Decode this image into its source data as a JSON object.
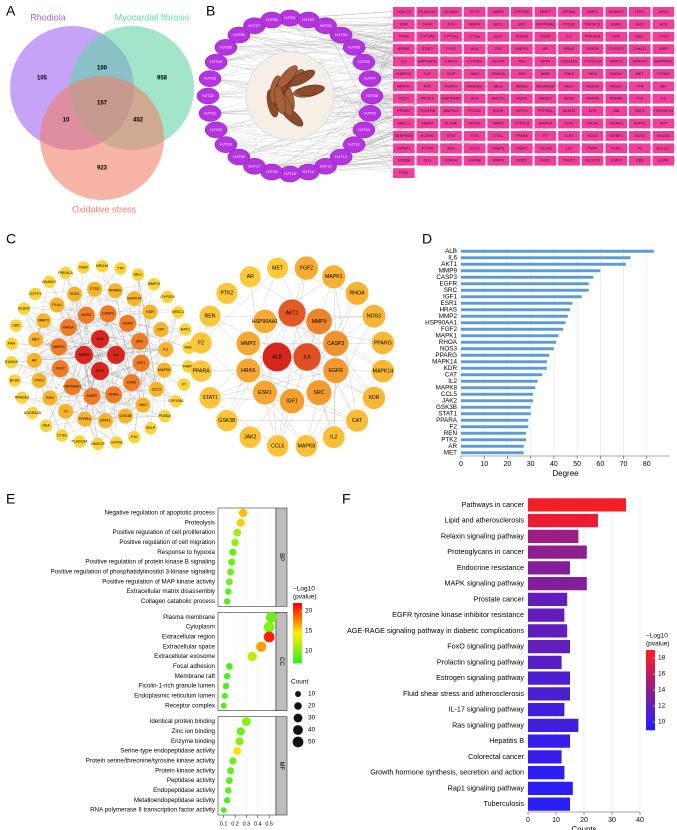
{
  "panel_labels": [
    "A",
    "B",
    "C",
    "D",
    "E",
    "F"
  ],
  "venn": {
    "sets": [
      {
        "name": "Rhodiola",
        "color": "#a066f0"
      },
      {
        "name": "Myocardial fibrosis",
        "color": "#62d6a8"
      },
      {
        "name": "Oxidative stress",
        "color": "#f0806a"
      }
    ],
    "regions": [
      105,
      100,
      958,
      157,
      10,
      452,
      923
    ]
  },
  "herb_network": {
    "compounds": [
      "HJT01",
      "HJT02",
      "HJT03",
      "HJT04",
      "HJT05",
      "HJT06",
      "HJT07",
      "HJT08",
      "HJT09",
      "HJT10",
      "HJT11",
      "HJT12",
      "HJT13",
      "HJT14",
      "HJT15",
      "HJT16",
      "HJT17",
      "HJT18",
      "HJT19",
      "HJT20",
      "HJT21",
      "HJT22",
      "HJT23",
      "HJT24",
      "HJT25",
      "HJT26",
      "HJT27",
      "HJT28"
    ],
    "targets": [
      "LGALS3",
      "PLA2G2A",
      "S100A9",
      "CFTR",
      "MMP3",
      "CYP19A1",
      "MMP7",
      "GP1BA",
      "MMP1",
      "ADAM17",
      "FGF1",
      "ARG1",
      "KDR",
      "CHUK",
      "JUN",
      "MMP9",
      "AKT1",
      "SRC",
      "SERPINA1",
      "PTGS2",
      "TNFSF11",
      "EGR1",
      "JAK1",
      "ACE",
      "P4HB",
      "CYP2A6",
      "CYP1A1",
      "CTSG",
      "IGF1",
      "PDE5A",
      "TGM2",
      "IL2",
      "PRKACA",
      "VDR",
      "SELL",
      "CTSD",
      "NFKB1",
      "STAT1",
      "PTK2",
      "ALB",
      "TEK",
      "MAPK1",
      "AR",
      "HRAS",
      "GSK3B",
      "CYP2C9",
      "CHKG1",
      "INSR",
      "IL6",
      "HSP90AA1",
      "CASP3",
      "CYP3A4",
      "ALOX5",
      "PAH",
      "DPP4",
      "HSD11B1",
      "CYP2C19",
      "MMP13",
      "SRD5A2",
      "SERPINE1",
      "MAPK10",
      "CAT",
      "XIAP",
      "JAK2",
      "PRKCA",
      "XDH",
      "MME",
      "TNKS",
      "REN",
      "RASA1",
      "MET",
      "CCND1",
      "MMP12",
      "F2R",
      "FGFR1",
      "RNASE3",
      "SELE",
      "ABCB1",
      "ADORA2A",
      "SELP",
      "NR1H4",
      "NR3C1",
      "TTR",
      "MIF",
      "NQO2",
      "PIK3CA",
      "HSP90AB1",
      "SHH",
      "HMOX1",
      "NQO1",
      "NR3C2",
      "NOS2",
      "HNF4A",
      "KDM4E",
      "F10",
      "F3",
      "PPARG",
      "PDGFRB",
      "MAPK14",
      "PTGS1",
      "BCHE",
      "GSTP1",
      "PTPN11",
      "ALDH2",
      "EPO",
      "MB",
      "RAF1",
      "TNFRSF1A",
      "ABCC1",
      "FABP4",
      "ELANE",
      "EPHX1",
      "MMP2",
      "CYP2C8",
      "MAPK8",
      "TLR2",
      "CALM1",
      "SMAD3",
      "HSPE1",
      "APP",
      "SERPINF2",
      "KCNH2",
      "TERT",
      "FOS",
      "CTSL",
      "PPARA",
      "F7",
      "TLR4",
      "NOX4",
      "IGFBP3",
      "NOS3",
      "HMGB1",
      "IGFBP1",
      "PTGIR",
      "ADA",
      "CCL5",
      "FABP3",
      "FABP1",
      "CXCR2",
      "LYZ",
      "PNMT",
      "PLAU",
      "F2",
      "BCL2L1",
      "SCN5A",
      "PLG",
      "FGFR4",
      "HSPA8",
      "MMP8",
      "SOD2",
      "FGF2",
      "TNNT2",
      "ALOX15",
      "STAT3",
      "CBS",
      "EGFR",
      "ESR1"
    ]
  },
  "ppi_network": {
    "rings": [
      [
        "ALB",
        "IL6",
        "AKT1",
        "MMP9"
      ],
      [
        "CASP3",
        "EGFR",
        "SRC",
        "IGF1",
        "ESR1",
        "HRAS",
        "MMP2",
        "HSP90AA1",
        "FGF2",
        "MAPK1",
        "RHOA",
        "NOS3"
      ],
      [
        "PPARG",
        "MAPK14",
        "KDR",
        "CAT",
        "IL2",
        "MAPK8",
        "CCL5",
        "JAK2",
        "GSK3B",
        "STAT1",
        "PPARA",
        "F2",
        "REN",
        "PTK2",
        "AR",
        "MET",
        "MMP3",
        "PLAU",
        "SOD2",
        "CTSD"
      ],
      [
        "TTR",
        "SELL",
        "MMP12",
        "CYP2C9",
        "NR3C1",
        "RAF1",
        "MME",
        "FABP4",
        "F7",
        "CYP19A1",
        "PDE5A",
        "SELP",
        "F10",
        "GSTM1",
        "HMGCR",
        "PLA2G2A",
        "CTSG",
        "ADA",
        "ADORA2A",
        "RNASE3",
        "BCHE",
        "S100A9",
        "PAH",
        "CBS",
        "ALDH2",
        "GSTP1",
        "ADAM17",
        "PRKACA",
        "INSR",
        "NR1H4"
      ]
    ]
  },
  "chart_data": [
    {
      "type": "barh",
      "xlabel": "Degree",
      "categories": [
        "ALB",
        "IL6",
        "AKT1",
        "MMP9",
        "CASP3",
        "EGFR",
        "SRC",
        "IGF1",
        "ESR1",
        "HRAS",
        "MMP2",
        "HSP90AA1",
        "FGF2",
        "MAPK1",
        "RHOA",
        "NOS3",
        "PPARG",
        "MAPK14",
        "KDR",
        "CAT",
        "IL2",
        "MAPK8",
        "CCL5",
        "JAK2",
        "GSK3B",
        "STAT1",
        "PPARA",
        "F2",
        "REN",
        "PTK2",
        "AR",
        "MET"
      ],
      "values": [
        83,
        73,
        71,
        60,
        57,
        55,
        55,
        52,
        48,
        47,
        46,
        45,
        44,
        42,
        41,
        40,
        38,
        37,
        37,
        35,
        33,
        32,
        31,
        31,
        30,
        30,
        29,
        29,
        28,
        28,
        27,
        27
      ],
      "color": "#5b9bd5",
      "xlim": [
        0,
        90
      ],
      "xticks": [
        0,
        10,
        20,
        30,
        40,
        50,
        60,
        70,
        80
      ],
      "grid": true
    },
    {
      "type": "dot",
      "groups": [
        {
          "name": "BP",
          "terms": [
            "Negative regulation of apoptotic process",
            "Proteolysis",
            "Positive regulation of cell proliferation",
            "Positive regulation of cell migration",
            "Response to hypoxia",
            "Positive regulation of protein kinase B signaling",
            "Positive regulation of phosphatidylinositol 3-kinase signaling",
            "Positive regulation of MAP kinase activity",
            "Extracellular matrix disassembly",
            "Collagen catabolic process"
          ],
          "x": [
            0.27,
            0.25,
            0.22,
            0.2,
            0.18,
            0.17,
            0.16,
            0.15,
            0.14,
            0.13
          ],
          "count": [
            27,
            25,
            22,
            20,
            18,
            17,
            16,
            15,
            14,
            13
          ],
          "color_values": [
            16,
            15.5,
            11,
            10.5,
            9,
            9,
            9,
            9,
            8.5,
            8.5
          ]
        },
        {
          "name": "CC",
          "terms": [
            "Plasma membrane",
            "Cytoplasm",
            "Extracellular region",
            "Extracellular space",
            "Extracellular exosome",
            "Focal adhesion",
            "Membrane raft",
            "Ficolin-1-rich granule lumen",
            "Endoplasmic reticulum lumen",
            "Receptor complex"
          ],
          "x": [
            0.52,
            0.5,
            0.5,
            0.43,
            0.35,
            0.15,
            0.13,
            0.12,
            0.11,
            0.1
          ],
          "count": [
            52,
            50,
            50,
            43,
            35,
            15,
            13,
            12,
            11,
            10
          ],
          "color_values": [
            9,
            10,
            21,
            17,
            12,
            8,
            8,
            8,
            8,
            8
          ]
        },
        {
          "name": "MF",
          "terms": [
            "Identical protein binding",
            "Zinc ion binding",
            "Enzyme binding",
            "Serine-type endopeptidase activity",
            "Protein serine/threonine/tyrosine kinase activity",
            "Protein kinase activity",
            "Peptidase activity",
            "Endopeptidase activity",
            "Metalloendopeptidase activity",
            "RNA polymerase II transcription factor activity"
          ],
          "x": [
            0.3,
            0.25,
            0.24,
            0.22,
            0.18,
            0.16,
            0.15,
            0.14,
            0.13,
            0.1
          ],
          "count": [
            30,
            25,
            24,
            22,
            18,
            16,
            15,
            14,
            13,
            10
          ],
          "color_values": [
            10,
            9,
            10,
            15,
            9,
            8.5,
            8.5,
            8.5,
            8,
            8
          ]
        }
      ],
      "xlim": [
        0.05,
        0.56
      ],
      "xticks": [
        0.1,
        0.2,
        0.3,
        0.4,
        0.5
      ],
      "colors": [
        "#33ee22",
        "#ffee00",
        "#ff0000"
      ],
      "clim": [
        7,
        22
      ],
      "color_ticks": [
        10,
        15,
        20
      ],
      "color_title": [
        "−Log10",
        "(pvalue)"
      ],
      "size_title": "Count",
      "size_ticks": [
        10,
        20,
        30,
        40,
        50
      ]
    },
    {
      "type": "barh",
      "xlabel": "Counts",
      "categories": [
        "Pathways in cancer",
        "Lipid and atherosclerosis",
        "Relaxin signaling pathway",
        "Proteoglycans in cancer",
        "Endocrine resistance",
        "MAPK signaling pathway",
        "Prostate cancer",
        "EGFR tyrosine kinase inhibitor resistance",
        "AGE-RAGE signaling pathway in diabetic complications",
        "FoxO signaling pathway",
        "Prolactin signaling pathway",
        "Estrogen signaling pathway",
        "Fluid shear stress and atherosclerosis",
        "IL-17 signaling pathway",
        "Ras signaling pathway",
        "Hepatitis B",
        "Colorectal cancer",
        "Growth hormone synthesis, secretion and action",
        "Rap1 signaling pathway",
        "Tuberculosis"
      ],
      "values": [
        35,
        25,
        18,
        21,
        15,
        21,
        14,
        13,
        14,
        15,
        12,
        15,
        15,
        13,
        18,
        15,
        12,
        13,
        16,
        15
      ],
      "color_values": [
        18.5,
        18,
        14.5,
        14,
        13.5,
        13.5,
        12,
        12,
        12,
        12,
        11.5,
        11,
        11,
        10.5,
        10.5,
        10,
        10,
        9.5,
        9.5,
        9.5
      ],
      "colors": [
        "#1e1eff",
        "#ff1e1e"
      ],
      "clim": [
        9,
        19
      ],
      "color_ticks": [
        10,
        12,
        14,
        16,
        18
      ],
      "color_title": [
        "−Log10",
        "(pvalue)"
      ],
      "xlim": [
        0,
        40
      ],
      "xticks": [
        0,
        10,
        20,
        30,
        40
      ],
      "grid": true
    }
  ]
}
